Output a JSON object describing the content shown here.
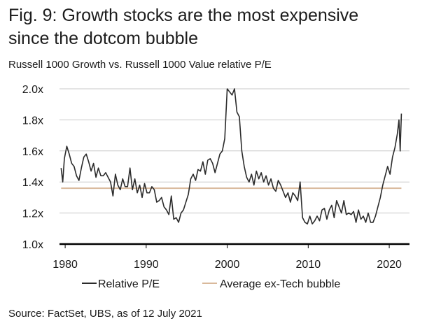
{
  "title_line1": "Fig. 9: Growth stocks are the most expensive",
  "title_line2": "since the dotcom bubble",
  "subtitle": "Russell 1000 Growth vs. Russell 1000 Value relative P/E",
  "source": "Source: FactSet, UBS, as of 12 July 2021",
  "colors": {
    "series": "#2b2b2b",
    "average": "#d9b99b",
    "grid": "#c8c8c8",
    "axis": "#000000"
  },
  "chart_data": {
    "type": "line",
    "xlim": [
      1979.3,
      2022.5
    ],
    "ylim": [
      1.0,
      2.0
    ],
    "grid": true,
    "legend_position": "bottom",
    "x_ticks": [
      {
        "value": 1980,
        "label": "1980"
      },
      {
        "value": 1990,
        "label": "1990"
      },
      {
        "value": 2000,
        "label": "2000"
      },
      {
        "value": 2010,
        "label": "2010"
      },
      {
        "value": 2020,
        "label": "2020"
      }
    ],
    "y_ticks": [
      {
        "value": 1.0,
        "label": "1.0x"
      },
      {
        "value": 1.2,
        "label": "1.2x"
      },
      {
        "value": 1.4,
        "label": "1.4x"
      },
      {
        "value": 1.6,
        "label": "1.6x"
      },
      {
        "value": 1.8,
        "label": "1.8x"
      },
      {
        "value": 2.0,
        "label": "2.0x"
      }
    ],
    "series": [
      {
        "name": "Relative P/E",
        "x": [
          1979.5,
          1979.7,
          1979.9,
          1980.2,
          1980.5,
          1980.8,
          1981.1,
          1981.4,
          1981.7,
          1982.0,
          1982.3,
          1982.6,
          1982.9,
          1983.2,
          1983.5,
          1983.8,
          1984.1,
          1984.4,
          1984.7,
          1985.0,
          1985.3,
          1985.6,
          1985.9,
          1986.2,
          1986.5,
          1986.8,
          1987.1,
          1987.4,
          1987.7,
          1988.0,
          1988.3,
          1988.6,
          1988.9,
          1989.2,
          1989.5,
          1989.8,
          1990.1,
          1990.4,
          1990.7,
          1991.0,
          1991.3,
          1991.6,
          1991.9,
          1992.2,
          1992.5,
          1992.8,
          1993.1,
          1993.4,
          1993.7,
          1994.0,
          1994.3,
          1994.6,
          1994.9,
          1995.2,
          1995.5,
          1995.8,
          1996.1,
          1996.4,
          1996.7,
          1997.0,
          1997.3,
          1997.6,
          1997.9,
          1998.2,
          1998.5,
          1998.8,
          1999.1,
          1999.4,
          1999.7,
          2000.0,
          2000.3,
          2000.6,
          2000.9,
          2001.2,
          2001.5,
          2001.8,
          2002.1,
          2002.4,
          2002.7,
          2003.0,
          2003.3,
          2003.6,
          2003.9,
          2004.2,
          2004.5,
          2004.8,
          2005.1,
          2005.4,
          2005.7,
          2006.0,
          2006.3,
          2006.6,
          2006.9,
          2007.2,
          2007.5,
          2007.8,
          2008.1,
          2008.4,
          2008.7,
          2009.0,
          2009.3,
          2009.6,
          2009.9,
          2010.2,
          2010.5,
          2010.8,
          2011.1,
          2011.4,
          2011.7,
          2012.0,
          2012.3,
          2012.6,
          2012.9,
          2013.2,
          2013.5,
          2013.8,
          2014.1,
          2014.4,
          2014.7,
          2015.0,
          2015.3,
          2015.6,
          2015.9,
          2016.2,
          2016.5,
          2016.8,
          2017.1,
          2017.4,
          2017.7,
          2018.0,
          2018.3,
          2018.6,
          2018.9,
          2019.2,
          2019.5,
          2019.8,
          2020.1,
          2020.4,
          2020.7,
          2021.0,
          2021.2,
          2021.35,
          2021.5
        ],
        "y": [
          1.49,
          1.4,
          1.55,
          1.63,
          1.58,
          1.52,
          1.5,
          1.44,
          1.41,
          1.49,
          1.56,
          1.58,
          1.53,
          1.47,
          1.52,
          1.43,
          1.49,
          1.44,
          1.44,
          1.46,
          1.43,
          1.4,
          1.31,
          1.45,
          1.38,
          1.35,
          1.42,
          1.37,
          1.37,
          1.49,
          1.35,
          1.42,
          1.33,
          1.38,
          1.3,
          1.39,
          1.33,
          1.33,
          1.37,
          1.35,
          1.27,
          1.28,
          1.3,
          1.24,
          1.22,
          1.19,
          1.31,
          1.16,
          1.17,
          1.14,
          1.2,
          1.22,
          1.27,
          1.32,
          1.42,
          1.45,
          1.41,
          1.48,
          1.47,
          1.53,
          1.45,
          1.54,
          1.55,
          1.52,
          1.46,
          1.52,
          1.58,
          1.6,
          1.68,
          2.0,
          1.98,
          1.96,
          2.0,
          1.85,
          1.82,
          1.6,
          1.5,
          1.43,
          1.4,
          1.45,
          1.38,
          1.47,
          1.42,
          1.46,
          1.4,
          1.44,
          1.38,
          1.42,
          1.36,
          1.34,
          1.41,
          1.38,
          1.34,
          1.3,
          1.33,
          1.27,
          1.33,
          1.31,
          1.28,
          1.4,
          1.17,
          1.14,
          1.13,
          1.18,
          1.13,
          1.15,
          1.18,
          1.15,
          1.22,
          1.23,
          1.16,
          1.22,
          1.25,
          1.17,
          1.28,
          1.24,
          1.2,
          1.28,
          1.19,
          1.2,
          1.19,
          1.21,
          1.14,
          1.22,
          1.16,
          1.18,
          1.14,
          1.2,
          1.14,
          1.14,
          1.18,
          1.24,
          1.3,
          1.38,
          1.44,
          1.5,
          1.45,
          1.56,
          1.62,
          1.71,
          1.8,
          1.6,
          1.84
        ]
      },
      {
        "name": "Average ex-Tech bubble",
        "x": [
          1979.5,
          2021.5
        ],
        "y": [
          1.36,
          1.36
        ]
      }
    ]
  }
}
